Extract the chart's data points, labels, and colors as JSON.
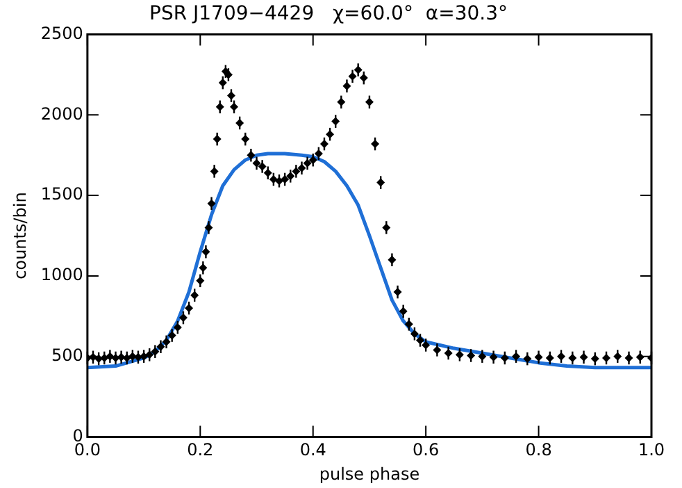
{
  "chart_data": {
    "type": "scatter",
    "title": "PSR J1709−4429   χ=60.0°  α=30.3°",
    "xlabel": "pulse phase",
    "ylabel": "counts/bin",
    "xlim": [
      0,
      1
    ],
    "ylim": [
      0,
      2500
    ],
    "xticks": [
      {
        "value": 0,
        "label": "0.0"
      },
      {
        "value": 0.2,
        "label": "0.2"
      },
      {
        "value": 0.4,
        "label": "0.4"
      },
      {
        "value": 0.6,
        "label": "0.6"
      },
      {
        "value": 0.8,
        "label": "0.8"
      },
      {
        "value": 1,
        "label": "1.0"
      }
    ],
    "yticks": [
      0,
      500,
      1000,
      1500,
      2000,
      2500
    ],
    "grid": false,
    "legend": false,
    "series": [
      {
        "type": "scatter",
        "color": "#000000",
        "marker": "diamond",
        "x": [
          0,
          0.01,
          0.02,
          0.03,
          0.04,
          0.05,
          0.06,
          0.07,
          0.08,
          0.09,
          0.1,
          0.11,
          0.12,
          0.13,
          0.14,
          0.15,
          0.16,
          0.17,
          0.18,
          0.19,
          0.2,
          0.205,
          0.21,
          0.215,
          0.22,
          0.225,
          0.23,
          0.235,
          0.24,
          0.245,
          0.25,
          0.255,
          0.26,
          0.27,
          0.28,
          0.29,
          0.3,
          0.31,
          0.32,
          0.33,
          0.34,
          0.35,
          0.36,
          0.37,
          0.38,
          0.39,
          0.4,
          0.41,
          0.42,
          0.43,
          0.44,
          0.45,
          0.46,
          0.47,
          0.48,
          0.49,
          0.5,
          0.51,
          0.52,
          0.53,
          0.54,
          0.55,
          0.56,
          0.57,
          0.58,
          0.59,
          0.6,
          0.62,
          0.64,
          0.66,
          0.68,
          0.7,
          0.72,
          0.74,
          0.76,
          0.78,
          0.8,
          0.82,
          0.84,
          0.86,
          0.88,
          0.9,
          0.92,
          0.94,
          0.96,
          0.98,
          1
        ],
        "values": [
          490,
          495,
          485,
          490,
          500,
          490,
          495,
          490,
          500,
          495,
          500,
          510,
          530,
          560,
          590,
          630,
          680,
          740,
          800,
          880,
          970,
          1050,
          1150,
          1300,
          1450,
          1650,
          1850,
          2050,
          2200,
          2270,
          2250,
          2120,
          2050,
          1950,
          1850,
          1750,
          1700,
          1680,
          1640,
          1600,
          1590,
          1600,
          1620,
          1650,
          1670,
          1700,
          1720,
          1760,
          1820,
          1880,
          1960,
          2080,
          2180,
          2240,
          2280,
          2230,
          2080,
          1820,
          1580,
          1300,
          1100,
          900,
          780,
          700,
          640,
          600,
          570,
          540,
          520,
          510,
          505,
          500,
          495,
          490,
          500,
          485,
          495,
          490,
          500,
          490,
          495,
          485,
          490,
          500,
          490,
          495,
          490
        ],
        "errors": [
          40,
          40,
          40,
          40,
          40,
          40,
          40,
          40,
          40,
          40,
          40,
          40,
          40,
          40,
          40,
          40,
          40,
          40,
          40,
          40,
          40,
          40,
          40,
          40,
          40,
          40,
          40,
          40,
          40,
          40,
          40,
          40,
          40,
          40,
          40,
          40,
          40,
          40,
          40,
          40,
          40,
          40,
          40,
          40,
          40,
          40,
          40,
          40,
          40,
          40,
          40,
          40,
          40,
          40,
          40,
          40,
          40,
          40,
          40,
          40,
          40,
          40,
          40,
          40,
          40,
          40,
          40,
          40,
          40,
          40,
          40,
          40,
          40,
          40,
          40,
          40,
          40,
          40,
          40,
          40,
          40,
          40,
          40,
          40,
          40,
          40,
          40
        ]
      },
      {
        "type": "line",
        "color": "#1f6fd6",
        "marker": "none",
        "x": [
          0,
          0.05,
          0.1,
          0.12,
          0.14,
          0.16,
          0.18,
          0.2,
          0.22,
          0.24,
          0.26,
          0.28,
          0.3,
          0.32,
          0.35,
          0.38,
          0.4,
          0.42,
          0.44,
          0.46,
          0.48,
          0.5,
          0.52,
          0.54,
          0.56,
          0.58,
          0.6,
          0.65,
          0.7,
          0.75,
          0.8,
          0.85,
          0.9,
          1
        ],
        "values": [
          430,
          440,
          490,
          530,
          600,
          720,
          900,
          1150,
          1380,
          1560,
          1660,
          1720,
          1750,
          1760,
          1760,
          1750,
          1740,
          1710,
          1650,
          1560,
          1440,
          1250,
          1050,
          850,
          720,
          640,
          590,
          550,
          520,
          490,
          460,
          440,
          430,
          430
        ]
      }
    ]
  }
}
